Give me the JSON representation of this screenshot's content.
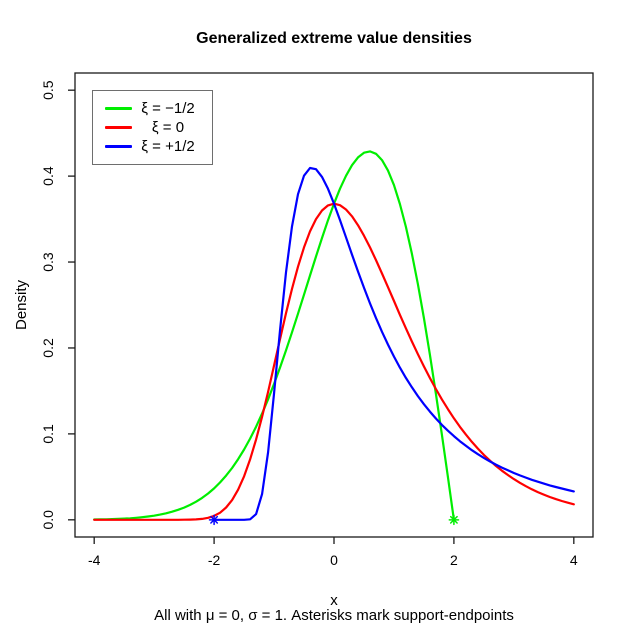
{
  "chart_data": {
    "type": "line",
    "title": "Generalized extreme value densities",
    "xlabel": "x",
    "ylabel": "Density",
    "sub_caption": "All with μ = 0, σ = 1. Asterisks mark support-endpoints",
    "xlim": [
      -4.32,
      4.32
    ],
    "ylim": [
      -0.02,
      0.52
    ],
    "grid": "off",
    "legend_position": "top-left",
    "x_tick_values": [
      -4,
      -2,
      0,
      2,
      4
    ],
    "x_tick_labels": [
      "-4",
      "-2",
      "0",
      "2",
      "4"
    ],
    "y_tick_values": [
      0.0,
      0.1,
      0.2,
      0.3,
      0.4,
      0.5
    ],
    "y_tick_labels": [
      "0.0",
      "0.1",
      "0.2",
      "0.3",
      "0.4",
      "0.5"
    ],
    "x": [
      -4,
      -3.9,
      -3.8,
      -3.7,
      -3.6,
      -3.5,
      -3.4,
      -3.3,
      -3.2,
      -3.1,
      -3,
      -2.9,
      -2.8,
      -2.7,
      -2.6,
      -2.5,
      -2.4,
      -2.3,
      -2.2,
      -2.1,
      -2,
      -1.9,
      -1.8,
      -1.7,
      -1.6,
      -1.5,
      -1.4,
      -1.3,
      -1.2,
      -1.1,
      -1,
      -0.9,
      -0.8,
      -0.7,
      -0.6,
      -0.5,
      -0.4,
      -0.3,
      -0.2,
      -0.1,
      0,
      0.1,
      0.2,
      0.3,
      0.4,
      0.5,
      0.6,
      0.7,
      0.8,
      0.9,
      1,
      1.1,
      1.2,
      1.3,
      1.4,
      1.5,
      1.6,
      1.7,
      1.8,
      1.9,
      2,
      2.1,
      2.2,
      2.3,
      2.4,
      2.5,
      2.6,
      2.7,
      2.8,
      2.9,
      3,
      3.1,
      3.2,
      3.3,
      3.4,
      3.5,
      3.6,
      3.7,
      3.8,
      3.9,
      4
    ],
    "series": [
      {
        "name": "ξ = −1/2",
        "color": "#00ee00",
        "values": [
          0.0004,
          0.0005,
          0.0006,
          0.0008,
          0.0011,
          0.0014,
          0.0018,
          0.0024,
          0.003,
          0.0038,
          0.0048,
          0.0061,
          0.0076,
          0.0094,
          0.0116,
          0.0142,
          0.0174,
          0.0211,
          0.0255,
          0.0306,
          0.0366,
          0.0435,
          0.0514,
          0.0603,
          0.0705,
          0.0818,
          0.0945,
          0.1084,
          0.1237,
          0.1402,
          0.1581,
          0.1771,
          0.1972,
          0.2182,
          0.2399,
          0.262,
          0.2843,
          0.3064,
          0.328,
          0.3487,
          0.3679,
          0.3853,
          0.4004,
          0.4127,
          0.4218,
          0.4273,
          0.4288,
          0.426,
          0.4186,
          0.4064,
          0.3894,
          0.3675,
          0.3409,
          0.3096,
          0.2742,
          0.2349,
          0.1922,
          0.1467,
          0.099,
          0.0499,
          0,
          null,
          null,
          null,
          null,
          null,
          null,
          null,
          null,
          null,
          null,
          null,
          null,
          null,
          null,
          null,
          null,
          null,
          null,
          null,
          null
        ]
      },
      {
        "name": "ξ = 0",
        "color": "#ff0000",
        "values": [
          0,
          0,
          0,
          0,
          0,
          0,
          0,
          0,
          0,
          0,
          0,
          0,
          0,
          0,
          0,
          0.0001,
          0.0002,
          0.0005,
          0.0011,
          0.0023,
          0.0046,
          0.0083,
          0.0143,
          0.023,
          0.035,
          0.0507,
          0.0703,
          0.0936,
          0.12,
          0.1489,
          0.1794,
          0.2102,
          0.2404,
          0.2687,
          0.2946,
          0.317,
          0.3356,
          0.35,
          0.36,
          0.3659,
          0.3679,
          0.3661,
          0.3611,
          0.3532,
          0.3429,
          0.3307,
          0.317,
          0.3022,
          0.2867,
          0.2707,
          0.2546,
          0.2386,
          0.2229,
          0.2075,
          0.1927,
          0.1785,
          0.165,
          0.1522,
          0.1401,
          0.1288,
          0.1182,
          0.1083,
          0.0992,
          0.0907,
          0.0829,
          0.0756,
          0.069,
          0.0628,
          0.0572,
          0.0521,
          0.0474,
          0.0431,
          0.0391,
          0.0355,
          0.0323,
          0.0293,
          0.0266,
          0.0241,
          0.0219,
          0.0199,
          0.018
        ]
      },
      {
        "name": "ξ = +1/2",
        "color": "#0000ff",
        "values": [
          null,
          null,
          null,
          null,
          null,
          null,
          null,
          null,
          null,
          null,
          null,
          null,
          null,
          null,
          null,
          null,
          null,
          null,
          null,
          null,
          0,
          0,
          0,
          0,
          0,
          0,
          0.0006,
          0.0066,
          0.0302,
          0.0787,
          0.1465,
          0.2203,
          0.2879,
          0.3415,
          0.3789,
          0.4005,
          0.4094,
          0.408,
          0.3991,
          0.3852,
          0.3679,
          0.3488,
          0.3288,
          0.3087,
          0.289,
          0.27,
          0.2519,
          0.2348,
          0.2188,
          0.2039,
          0.19,
          0.1771,
          0.1652,
          0.1542,
          0.144,
          0.1346,
          0.1259,
          0.1179,
          0.1105,
          0.1037,
          0.0974,
          0.0915,
          0.0861,
          0.081,
          0.0764,
          0.0721,
          0.068,
          0.0643,
          0.0608,
          0.0576,
          0.0545,
          0.0517,
          0.0491,
          0.0466,
          0.0443,
          0.0421,
          0.0401,
          0.0382,
          0.0364,
          0.0347,
          0.0331
        ]
      }
    ],
    "markers": [
      {
        "x": -2,
        "y": 0,
        "color": "#0000ff",
        "shape": "asterisk"
      },
      {
        "x": 2,
        "y": 0,
        "color": "#00ee00",
        "shape": "asterisk"
      }
    ]
  }
}
